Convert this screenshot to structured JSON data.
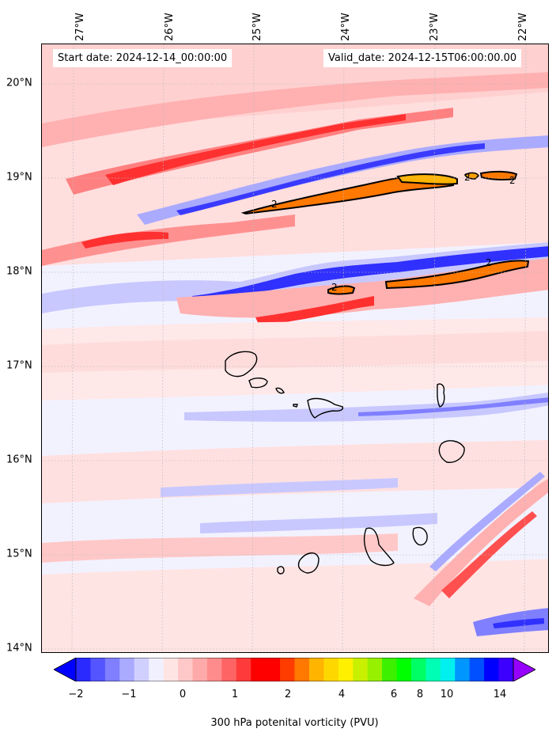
{
  "header": {
    "start_date": "Start date: 2024-12-14_00:00:00",
    "valid_date": "Valid_date: 2024-12-15T06:00:00.00"
  },
  "map": {
    "lon_labels": [
      "27°W",
      "26°W",
      "25°W",
      "24°W",
      "23°W",
      "22°W"
    ],
    "lat_labels": [
      "20°N",
      "19°N",
      "18°N",
      "17°N",
      "16°N",
      "15°N",
      "14°N"
    ],
    "contour_value_label": "2",
    "gridlines": true,
    "coastline_color": "#000000"
  },
  "colorbar": {
    "label": "300 hPa potenital vorticity (PVU)",
    "tick_labels": [
      "−2",
      "−1",
      "0",
      "1",
      "2",
      "4",
      "6",
      "8",
      "10",
      "14"
    ],
    "colors": [
      "#0000ff",
      "#2a2aff",
      "#5555ff",
      "#7f7fff",
      "#aaaaff",
      "#d0d0ff",
      "#f0f0ff",
      "#ffe4e4",
      "#ffc8c8",
      "#ffaaaa",
      "#ff8c8c",
      "#ff6464",
      "#ff3a3a",
      "#ff0000",
      "#ff0000",
      "#ff3c00",
      "#ff7800",
      "#ffb400",
      "#ffd700",
      "#fff000",
      "#c8f000",
      "#96f000",
      "#3cf000",
      "#00ff00",
      "#00ff64",
      "#00ffb4",
      "#00f0f0",
      "#0096ff",
      "#0050ff",
      "#0000ff",
      "#3c00ff",
      "#9600ff"
    ],
    "extend": "both"
  }
}
